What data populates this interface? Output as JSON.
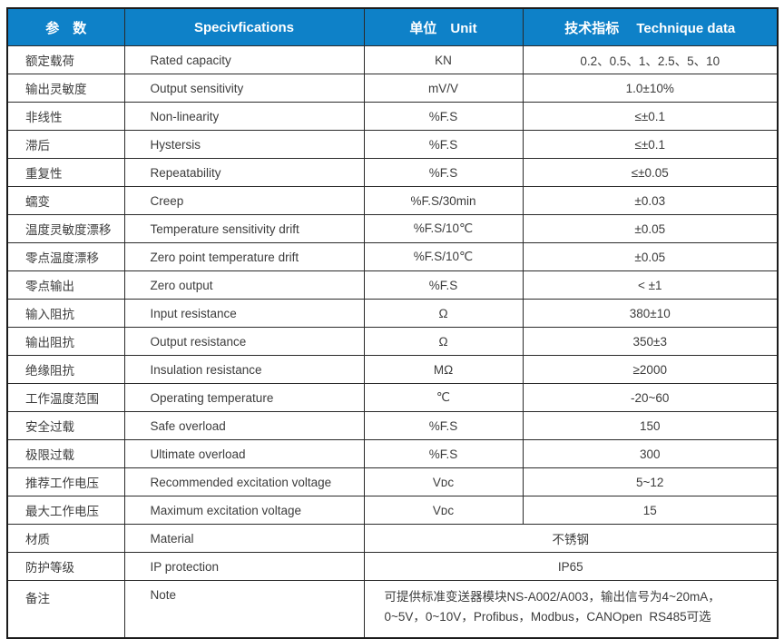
{
  "accent_color": "#0e81c8",
  "grid_color": "#2a2a2a",
  "text_color": "#3c3c3c",
  "table": {
    "headers": {
      "param": "参　数",
      "spec": "Specivfications",
      "unit": "单位　Unit",
      "data": "技术指标　 Technique data"
    },
    "rows": [
      {
        "param": "额定载荷",
        "spec": "Rated capacity",
        "unit": "KN",
        "value": "0.2、0.5、1、2.5、5、10"
      },
      {
        "param": "输出灵敏度",
        "spec": "Output sensitivity",
        "unit": "mV/V",
        "value": "1.0±10%"
      },
      {
        "param": "非线性",
        "spec": "Non-linearity",
        "unit": "%F.S",
        "value": "≤±0.1"
      },
      {
        "param": "滞后",
        "spec": "Hystersis",
        "unit": "%F.S",
        "value": "≤±0.1"
      },
      {
        "param": "重复性",
        "spec": "Repeatability",
        "unit": "%F.S",
        "value": "≤±0.05"
      },
      {
        "param": "蠕变",
        "spec": "Creep",
        "unit": "%F.S/30min",
        "value": "±0.03"
      },
      {
        "param": "温度灵敏度漂移",
        "spec": "Temperature sensitivity drift",
        "unit": "%F.S/10℃",
        "value": "±0.05"
      },
      {
        "param": "零点温度漂移",
        "spec": "Zero point temperature drift",
        "unit": "%F.S/10℃",
        "value": "±0.05"
      },
      {
        "param": "零点输出",
        "spec": "Zero output",
        "unit": "%F.S",
        "value": "< ±1"
      },
      {
        "param": "输入阻抗",
        "spec": "Input resistance",
        "unit": "Ω",
        "value": "380±10"
      },
      {
        "param": "输出阻抗",
        "spec": "Output resistance",
        "unit": "Ω",
        "value": "350±3"
      },
      {
        "param": "绝缘阻抗",
        "spec": "Insulation resistance",
        "unit": "MΩ",
        "value": "≥2000"
      },
      {
        "param": "工作温度范围",
        "spec": "Operating temperature",
        "unit": "℃",
        "value": "-20~60"
      },
      {
        "param": "安全过载",
        "spec": "Safe overload",
        "unit": "%F.S",
        "value": "150"
      },
      {
        "param": "极限过载",
        "spec": "Ultimate overload",
        "unit": "%F.S",
        "value": "300"
      },
      {
        "param": "推荐工作电压",
        "spec": "Recommended excitation voltage",
        "unit": "Vᴅᴄ",
        "value": "5~12"
      },
      {
        "param": "最大工作电压",
        "spec": "Maximum excitation voltage",
        "unit": "Vᴅᴄ",
        "value": "15"
      },
      {
        "param": "材质",
        "spec": "Material",
        "merged": "不锈钢",
        "merged_align": "center"
      },
      {
        "param": "防护等级",
        "spec": "IP protection",
        "merged": "IP65",
        "merged_align": "center"
      },
      {
        "param": "备注",
        "spec": "Note",
        "merged": "可提供标准变送器模块NS-A002/A003，输出信号为4~20mA，0~5V，0~10V，Profibus，Modbus，CANOpen  RS485可选",
        "merged_align": "left",
        "tall": true
      }
    ]
  }
}
